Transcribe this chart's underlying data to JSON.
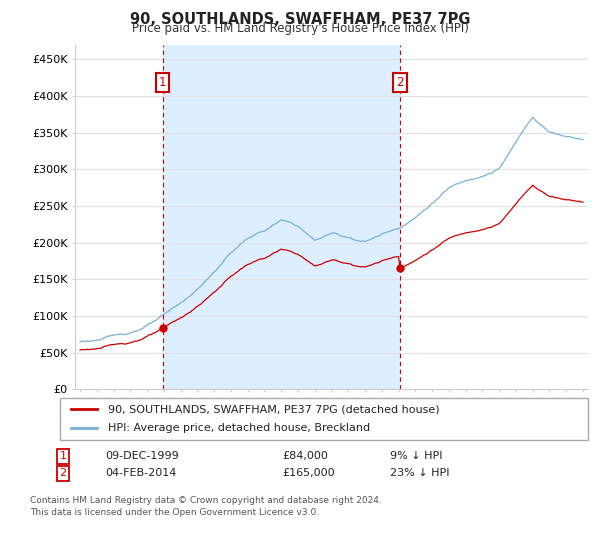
{
  "title": "90, SOUTHLANDS, SWAFFHAM, PE37 7PG",
  "subtitle": "Price paid vs. HM Land Registry's House Price Index (HPI)",
  "ylabel_ticks": [
    "£0",
    "£50K",
    "£100K",
    "£150K",
    "£200K",
    "£250K",
    "£300K",
    "£350K",
    "£400K",
    "£450K"
  ],
  "ytick_vals": [
    0,
    50000,
    100000,
    150000,
    200000,
    250000,
    300000,
    350000,
    400000,
    450000
  ],
  "ylim": [
    0,
    470000
  ],
  "xlim_start": 1994.7,
  "xlim_end": 2025.3,
  "purchase1_x": 1999.92,
  "purchase1_price": 84000,
  "purchase2_x": 2014.08,
  "purchase2_price": 165000,
  "hpi_color": "#7ab0dc",
  "price_color": "#cc0000",
  "vline_color": "#cc0000",
  "shade_color": "#ddeeff",
  "grid_color": "#e0e0e0",
  "background_color": "#ffffff",
  "legend_entry1": "90, SOUTHLANDS, SWAFFHAM, PE37 7PG (detached house)",
  "legend_entry2": "HPI: Average price, detached house, Breckland",
  "footnote": "Contains HM Land Registry data © Crown copyright and database right 2024.\nThis data is licensed under the Open Government Licence v3.0."
}
